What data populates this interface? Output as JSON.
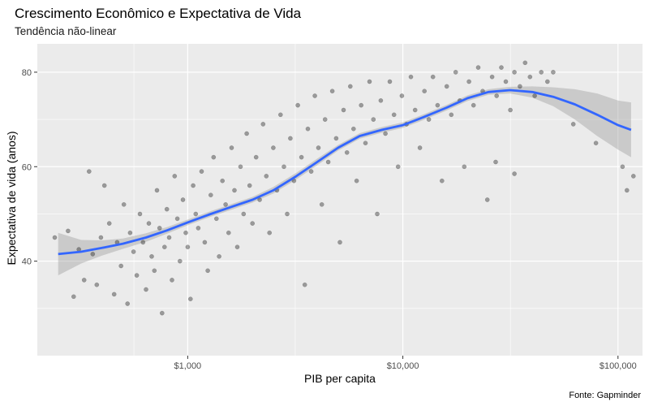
{
  "chart_data": {
    "type": "scatter",
    "title": "Crescimento Econômico e Expectativa de Vida",
    "subtitle": "Tendência não-linear",
    "xlabel": "PIB per capita",
    "ylabel": "Expectativa de vida (anos)",
    "caption": "Fonte: Gapminder",
    "x_scale": "log10",
    "xlim": [
      200,
      130000
    ],
    "ylim": [
      20,
      86
    ],
    "x_ticks": [
      {
        "value": 1000,
        "label": "$1,000"
      },
      {
        "value": 10000,
        "label": "$10,000"
      },
      {
        "value": 100000,
        "label": "$100,000"
      }
    ],
    "y_ticks": [
      {
        "value": 40,
        "label": "40"
      },
      {
        "value": 60,
        "label": "60"
      },
      {
        "value": 80,
        "label": "80"
      }
    ],
    "grid": true,
    "colors": {
      "panel": "#ebebeb",
      "grid": "#ffffff",
      "points": "#000000",
      "smooth_line": "#3366ff",
      "ribbon": "#999999"
    },
    "points_description": "Cerca de 1700 observações país-ano; amostra representativa abaixo (PIB per capita em US$, expectativa de vida em anos)",
    "points": [
      [
        241,
        45
      ],
      [
        278,
        46.4
      ],
      [
        295,
        32.5
      ],
      [
        312,
        42.5
      ],
      [
        330,
        36
      ],
      [
        348,
        59
      ],
      [
        362,
        41.5
      ],
      [
        378,
        35
      ],
      [
        395,
        45
      ],
      [
        410,
        56
      ],
      [
        432,
        48
      ],
      [
        455,
        33
      ],
      [
        470,
        44
      ],
      [
        490,
        39
      ],
      [
        505,
        52
      ],
      [
        525,
        31
      ],
      [
        540,
        46
      ],
      [
        560,
        42
      ],
      [
        580,
        37
      ],
      [
        600,
        50
      ],
      [
        620,
        44
      ],
      [
        640,
        34
      ],
      [
        660,
        48
      ],
      [
        680,
        41
      ],
      [
        700,
        38
      ],
      [
        720,
        55
      ],
      [
        740,
        47
      ],
      [
        760,
        29
      ],
      [
        780,
        43
      ],
      [
        800,
        51
      ],
      [
        820,
        45
      ],
      [
        845,
        36
      ],
      [
        870,
        58
      ],
      [
        895,
        49
      ],
      [
        920,
        40
      ],
      [
        950,
        53
      ],
      [
        980,
        46
      ],
      [
        1000,
        43
      ],
      [
        1030,
        32
      ],
      [
        1060,
        56
      ],
      [
        1090,
        50
      ],
      [
        1120,
        47
      ],
      [
        1160,
        59
      ],
      [
        1200,
        44
      ],
      [
        1240,
        38
      ],
      [
        1280,
        54
      ],
      [
        1320,
        62
      ],
      [
        1360,
        49
      ],
      [
        1400,
        41
      ],
      [
        1450,
        57
      ],
      [
        1500,
        52
      ],
      [
        1550,
        46
      ],
      [
        1600,
        64
      ],
      [
        1650,
        55
      ],
      [
        1700,
        43
      ],
      [
        1760,
        60
      ],
      [
        1820,
        50
      ],
      [
        1880,
        67
      ],
      [
        1940,
        56
      ],
      [
        2000,
        48
      ],
      [
        2080,
        62
      ],
      [
        2160,
        53
      ],
      [
        2240,
        69
      ],
      [
        2320,
        58
      ],
      [
        2400,
        46
      ],
      [
        2500,
        64
      ],
      [
        2600,
        55
      ],
      [
        2700,
        71
      ],
      [
        2800,
        60
      ],
      [
        2900,
        50
      ],
      [
        3000,
        66
      ],
      [
        3120,
        57
      ],
      [
        3250,
        73
      ],
      [
        3380,
        62
      ],
      [
        3500,
        35
      ],
      [
        3620,
        68
      ],
      [
        3750,
        59
      ],
      [
        3900,
        75
      ],
      [
        4050,
        64
      ],
      [
        4200,
        52
      ],
      [
        4350,
        70
      ],
      [
        4500,
        61
      ],
      [
        4700,
        76
      ],
      [
        4900,
        66
      ],
      [
        5100,
        44
      ],
      [
        5300,
        72
      ],
      [
        5500,
        63
      ],
      [
        5700,
        77
      ],
      [
        5900,
        68
      ],
      [
        6100,
        57
      ],
      [
        6400,
        73
      ],
      [
        6700,
        65
      ],
      [
        7000,
        78
      ],
      [
        7300,
        70
      ],
      [
        7600,
        50
      ],
      [
        7900,
        74
      ],
      [
        8300,
        67
      ],
      [
        8700,
        78
      ],
      [
        9100,
        71
      ],
      [
        9500,
        60
      ],
      [
        9900,
        75
      ],
      [
        10400,
        69
      ],
      [
        10900,
        79
      ],
      [
        11400,
        72
      ],
      [
        12000,
        64
      ],
      [
        12600,
        76
      ],
      [
        13200,
        70
      ],
      [
        13800,
        79
      ],
      [
        14500,
        73
      ],
      [
        15200,
        57
      ],
      [
        16000,
        77
      ],
      [
        16800,
        71
      ],
      [
        17600,
        80
      ],
      [
        18400,
        74
      ],
      [
        19300,
        60
      ],
      [
        20300,
        78
      ],
      [
        21300,
        73
      ],
      [
        22400,
        81
      ],
      [
        23500,
        76
      ],
      [
        24700,
        53
      ],
      [
        26000,
        79
      ],
      [
        27300,
        75
      ],
      [
        28700,
        81
      ],
      [
        30100,
        78
      ],
      [
        31600,
        72
      ],
      [
        33000,
        80
      ],
      [
        35000,
        77
      ],
      [
        37000,
        82
      ],
      [
        39000,
        79
      ],
      [
        41000,
        75
      ],
      [
        44000,
        80
      ],
      [
        47000,
        78
      ],
      [
        50000,
        80
      ],
      [
        62000,
        69
      ],
      [
        79000,
        65
      ],
      [
        105000,
        60
      ],
      [
        110000,
        55
      ],
      [
        118000,
        58
      ],
      [
        27000,
        61
      ],
      [
        33000,
        58.5
      ]
    ],
    "smooth": {
      "method": "loess",
      "x": [
        250,
        320,
        400,
        500,
        640,
        800,
        1000,
        1280,
        1600,
        2000,
        2500,
        3200,
        4000,
        5000,
        6300,
        8000,
        10000,
        12500,
        16000,
        20000,
        25000,
        31500,
        40000,
        50000,
        63000,
        80000,
        100000,
        115000
      ],
      "y": [
        41.5,
        42.0,
        42.8,
        43.7,
        45.0,
        46.5,
        48.2,
        50.0,
        51.5,
        53.0,
        55.0,
        58.0,
        61.0,
        64.0,
        66.5,
        67.8,
        68.8,
        70.5,
        72.5,
        74.5,
        75.8,
        76.2,
        75.8,
        74.8,
        73.2,
        71.0,
        68.8,
        67.8
      ],
      "ci_lower": [
        37.0,
        39.5,
        41.2,
        42.6,
        44.1,
        45.8,
        47.6,
        49.4,
        50.9,
        52.4,
        54.3,
        57.3,
        60.3,
        63.4,
        65.9,
        67.2,
        68.2,
        69.9,
        71.9,
        73.9,
        75.2,
        75.5,
        74.6,
        72.8,
        70.0,
        66.5,
        63.6,
        62.0
      ],
      "ci_upper": [
        46.0,
        44.5,
        44.4,
        44.8,
        45.9,
        47.2,
        48.8,
        50.6,
        52.1,
        53.6,
        55.7,
        58.7,
        61.7,
        64.6,
        67.1,
        68.4,
        69.4,
        71.1,
        73.1,
        75.1,
        76.4,
        76.9,
        77.0,
        76.8,
        76.4,
        75.5,
        74.0,
        73.6
      ]
    }
  }
}
